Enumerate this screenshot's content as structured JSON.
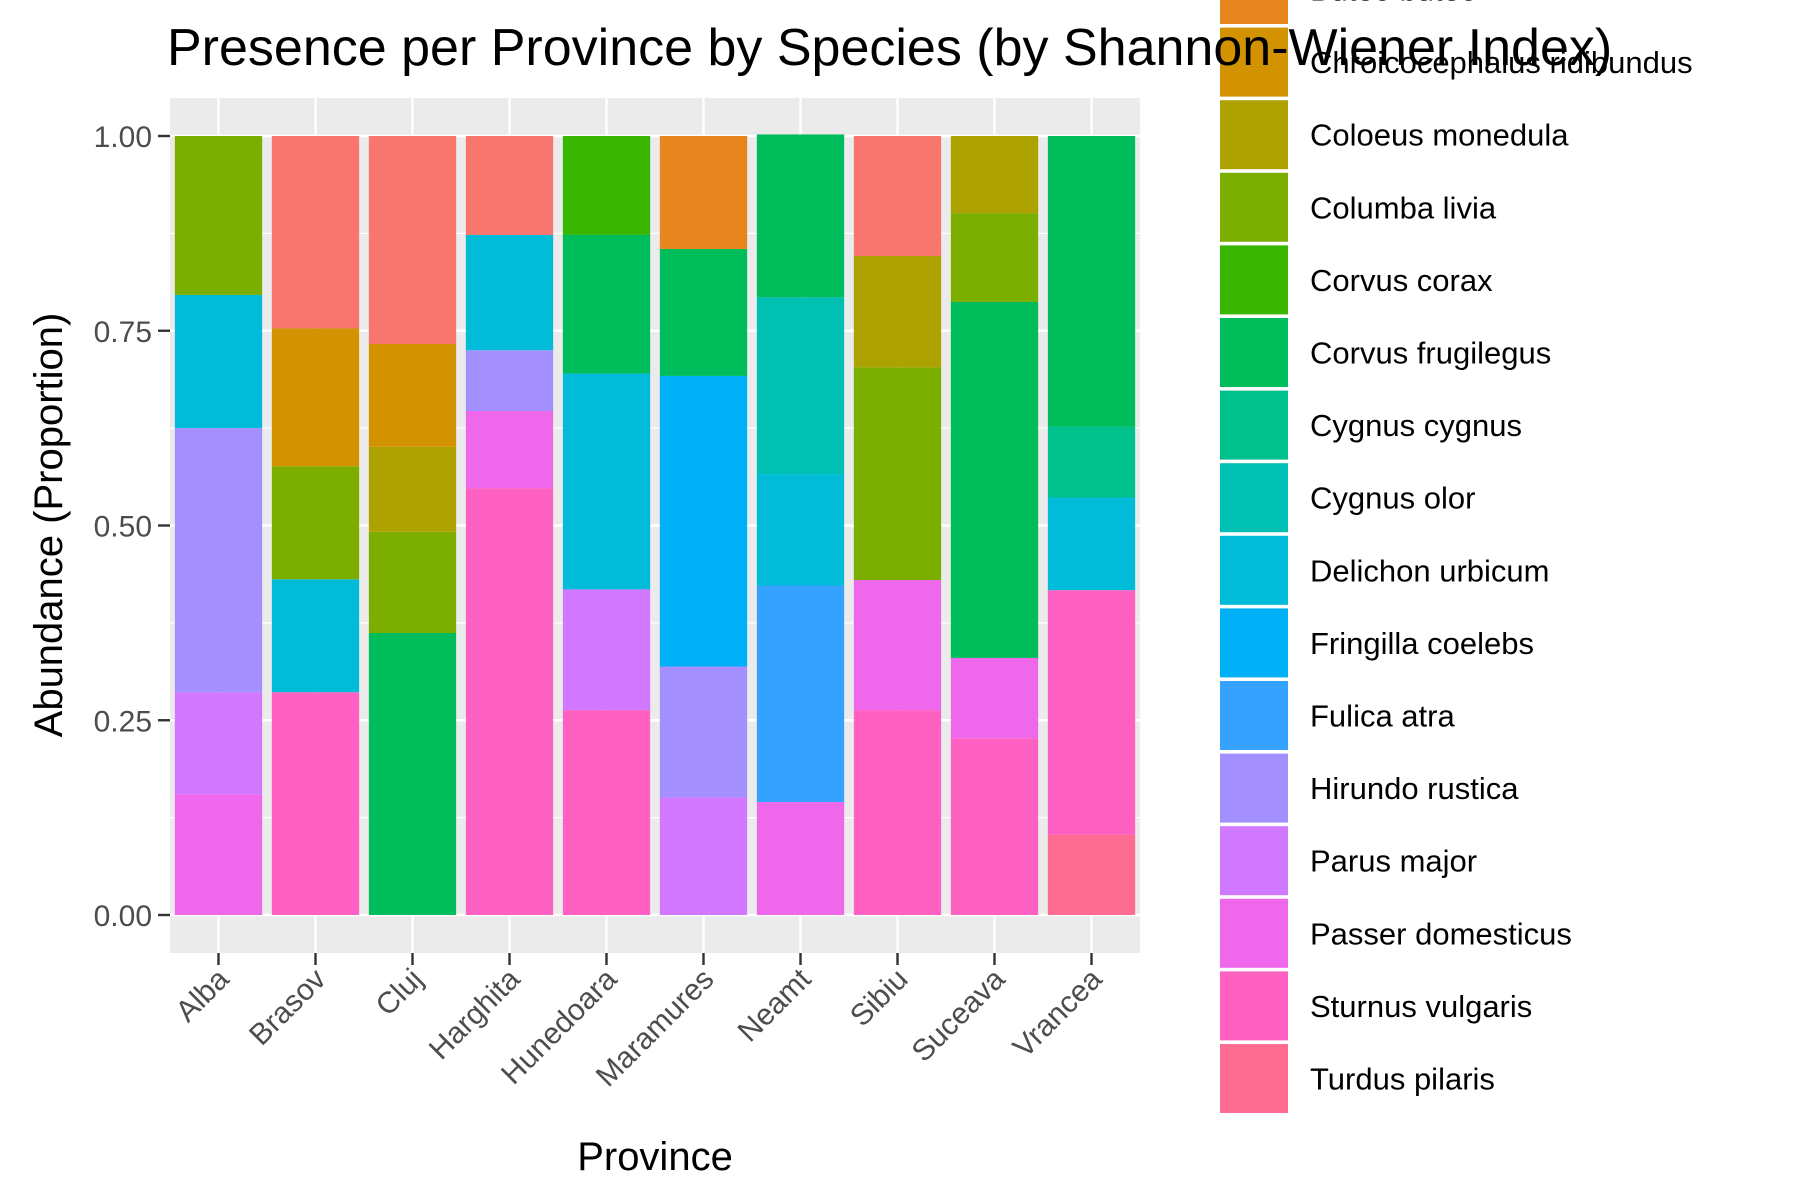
{
  "chart_data": {
    "type": "bar",
    "stacked": true,
    "title": "Presence per Province by Species (by Shannon-Wiener Index)",
    "xlabel": "Province",
    "ylabel": "Abundance (Proportion)",
    "ylim": [
      0,
      1
    ],
    "yticks": [
      "0.00",
      "0.25",
      "0.50",
      "0.75",
      "1.00"
    ],
    "categories": [
      "Alba",
      "Brasov",
      "Cluj",
      "Harghita",
      "Hunedoara",
      "Maramures",
      "Neamt",
      "Sibiu",
      "Suceava",
      "Vrancea"
    ],
    "grid": true,
    "legend_position": "right",
    "series": [
      {
        "name": "Turdus pilaris",
        "color": "#FF6C91",
        "values": [
          0,
          0,
          0,
          0,
          0,
          0,
          0,
          0,
          0,
          0.103
        ]
      },
      {
        "name": "Sturnus vulgaris",
        "color": "#FF61C3",
        "values": [
          0,
          0.286,
          0,
          0.548,
          0.263,
          0,
          0,
          0.263,
          0.227,
          0.314
        ]
      },
      {
        "name": "Passer domesticus",
        "color": "#EF67EB",
        "values": [
          0.155,
          0,
          0,
          0.099,
          0,
          0,
          0.145,
          0.167,
          0.103,
          0
        ]
      },
      {
        "name": "Parus major",
        "color": "#D078FF",
        "values": [
          0.131,
          0,
          0,
          0,
          0.155,
          0.151,
          0,
          0,
          0,
          0
        ]
      },
      {
        "name": "Hirundo rustica",
        "color": "#A48FFF",
        "values": [
          0.339,
          0,
          0,
          0.078,
          0,
          0.168,
          0,
          0,
          0,
          0
        ]
      },
      {
        "name": "Fulica atra",
        "color": "#35A2FF",
        "values": [
          0,
          0,
          0,
          0,
          0,
          0,
          0.278,
          0,
          0,
          0
        ]
      },
      {
        "name": "Fringilla coelebs",
        "color": "#00B0F6",
        "values": [
          0,
          0,
          0,
          0,
          0,
          0.373,
          0,
          0,
          0,
          0
        ]
      },
      {
        "name": "Delichon urbicum",
        "color": "#00BCD8",
        "values": [
          0.171,
          0.145,
          0,
          0.148,
          0.277,
          0,
          0.143,
          0,
          0,
          0.119
        ]
      },
      {
        "name": "Cygnus olor",
        "color": "#00BFB3",
        "values": [
          0,
          0,
          0,
          0,
          0,
          0,
          0.227,
          0,
          0,
          0
        ]
      },
      {
        "name": "Cygnus cygnus",
        "color": "#00C08B",
        "values": [
          0,
          0,
          0,
          0,
          0,
          0,
          0,
          0,
          0,
          0.091
        ]
      },
      {
        "name": "Corvus frugilegus",
        "color": "#00BD5C",
        "values": [
          0,
          0,
          0.362,
          0,
          0.178,
          0.163,
          0.209,
          0,
          0.457,
          0.373
        ]
      },
      {
        "name": "Corvus corax",
        "color": "#39B600",
        "values": [
          0,
          0,
          0,
          0,
          0.127,
          0,
          0,
          0,
          0,
          0
        ]
      },
      {
        "name": "Columba livia",
        "color": "#7CAE00",
        "values": [
          0.204,
          0.145,
          0.13,
          0,
          0,
          0,
          0,
          0.273,
          0.114,
          0
        ]
      },
      {
        "name": "Coloeus monedula",
        "color": "#AEA200",
        "values": [
          0,
          0,
          0.109,
          0,
          0,
          0,
          0,
          0.143,
          0.099,
          0
        ]
      },
      {
        "name": "Chroicocephalus ridibundus",
        "color": "#D39200",
        "values": [
          0,
          0.177,
          0.132,
          0,
          0,
          0,
          0,
          0,
          0,
          0
        ]
      },
      {
        "name": "Buteo buteo",
        "color": "#E7851E",
        "values": [
          0,
          0,
          0,
          0,
          0,
          0.145,
          0,
          0,
          0,
          0
        ]
      },
      {
        "name": "",
        "color": "#F8766D",
        "values": [
          0,
          0.247,
          0.267,
          0.127,
          0,
          0,
          0,
          0.154,
          0,
          0
        ]
      }
    ]
  }
}
